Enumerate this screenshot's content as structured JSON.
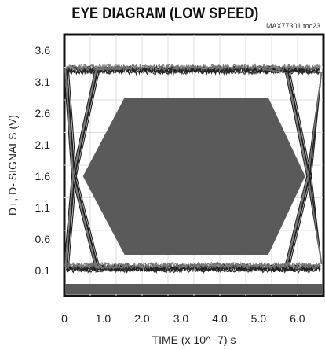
{
  "chart_data": {
    "type": "line",
    "title": "EYE DIAGRAM (LOW SPEED)",
    "subtitle": "MAX77301 toc23",
    "xlabel": "TIME (x 10^ -7) s",
    "ylabel": "D+, D- SIGNALS (V)",
    "xlim": [
      0,
      6.67
    ],
    "ylim": [
      -0.3,
      3.85
    ],
    "x_ticks": [
      "0",
      "1.0",
      "2.0",
      "3.0",
      "4.0",
      "5.0",
      "6.0"
    ],
    "x_tick_values": [
      0,
      1,
      2,
      3,
      4,
      5,
      6
    ],
    "y_ticks": [
      "0.1",
      "0.6",
      "1.1",
      "1.6",
      "2.1",
      "2.6",
      "3.1",
      "3.6"
    ],
    "y_tick_values": [
      0.1,
      0.6,
      1.1,
      1.6,
      2.1,
      2.6,
      3.1,
      3.6
    ],
    "grid": true,
    "signal_high": 3.3,
    "signal_low": 0.05,
    "eye_transitions": {
      "left_cross": 0.25,
      "right_cross": 6.3,
      "rise_width": 0.55
    },
    "eye_mask": [
      {
        "x": 0.48,
        "y": 1.6
      },
      {
        "x": 1.55,
        "y": 2.85
      },
      {
        "x": 5.25,
        "y": 2.85
      },
      {
        "x": 6.2,
        "y": 1.6
      },
      {
        "x": 5.25,
        "y": 0.35
      },
      {
        "x": 1.55,
        "y": 0.35
      }
    ],
    "colors": {
      "frame": "#111111",
      "plot_bg": "#ffffff",
      "mask": "#5a5a5a",
      "trace": "#222222",
      "trace_light": "#777777",
      "band": "#5a5a5a"
    }
  }
}
